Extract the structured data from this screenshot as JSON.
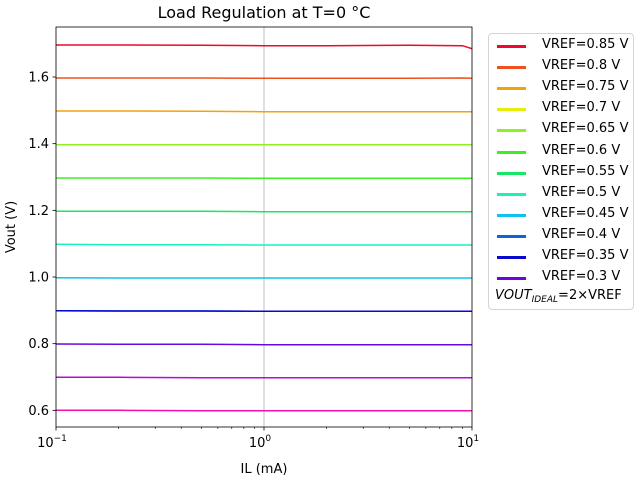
{
  "chart_data": {
    "type": "line",
    "title": "Load Regulation at T=0 °C",
    "xlabel": "IL (mA)",
    "ylabel": "Vout (V)",
    "xscale": "log",
    "xlim": [
      0.1,
      10
    ],
    "ylim": [
      0.55,
      1.75
    ],
    "x_ticks": [
      {
        "value": 0.1,
        "base": "10",
        "exp": "−1"
      },
      {
        "value": 1,
        "base": "10",
        "exp": "0"
      },
      {
        "value": 10,
        "base": "10",
        "exp": "1"
      }
    ],
    "y_ticks": [
      "0.6",
      "0.8",
      "1.0",
      "1.2",
      "1.4",
      "1.6"
    ],
    "grid": "vertical at 10^0",
    "legend_position": "outside right",
    "x": [
      0.1,
      0.2,
      0.5,
      1,
      2,
      5,
      9,
      10
    ],
    "series": [
      {
        "name": "VREF=0.85 V",
        "color": "#ee0a2a",
        "values": [
          1.696,
          1.696,
          1.695,
          1.694,
          1.694,
          1.695,
          1.694,
          1.685
        ]
      },
      {
        "name": "VREF=0.8 V",
        "color": "#f0501e",
        "values": [
          1.597,
          1.597,
          1.597,
          1.596,
          1.596,
          1.596,
          1.597,
          1.596
        ]
      },
      {
        "name": "VREF=0.75 V",
        "color": "#f5a20a",
        "values": [
          1.498,
          1.498,
          1.497,
          1.496,
          1.496,
          1.496,
          1.496,
          1.496
        ]
      },
      {
        "name": "VREF=0.7 V",
        "color": "#e8ec0a",
        "values": [
          1.397,
          1.397,
          1.397,
          1.397,
          1.397,
          1.397,
          1.397,
          1.397
        ]
      },
      {
        "name": "VREF=0.65 V",
        "color": "#90f020",
        "values": [
          1.397,
          1.397,
          1.397,
          1.397,
          1.397,
          1.397,
          1.397,
          1.397
        ]
      },
      {
        "name": "VREF=0.6 V",
        "color": "#3cf020",
        "values": [
          1.297,
          1.297,
          1.297,
          1.296,
          1.296,
          1.296,
          1.296,
          1.296
        ]
      },
      {
        "name": "VREF=0.55 V",
        "color": "#18e860",
        "values": [
          1.197,
          1.197,
          1.197,
          1.196,
          1.196,
          1.196,
          1.196,
          1.196
        ]
      },
      {
        "name": "VREF=0.5 V",
        "color": "#18f0c0",
        "values": [
          1.098,
          1.097,
          1.097,
          1.096,
          1.096,
          1.096,
          1.096,
          1.096
        ]
      },
      {
        "name": "VREF=0.45 V",
        "color": "#10c0f0",
        "values": [
          0.998,
          0.997,
          0.997,
          0.997,
          0.997,
          0.997,
          0.997,
          0.997
        ]
      },
      {
        "name": "VREF=0.4 V",
        "color": "#1060e0",
        "values": [
          0.899,
          0.898,
          0.898,
          0.897,
          0.897,
          0.897,
          0.897,
          0.897
        ]
      },
      {
        "name": "VREF=0.35 V",
        "color": "#0808d0",
        "values": [
          0.899,
          0.898,
          0.898,
          0.897,
          0.897,
          0.897,
          0.897,
          0.897
        ]
      },
      {
        "name": "VREF=0.3 V",
        "color": "#6808e0",
        "values": [
          0.799,
          0.798,
          0.798,
          0.797,
          0.797,
          0.797,
          0.797,
          0.797
        ]
      }
    ],
    "extra_series": [
      {
        "color": "#b808e0",
        "values": [
          0.699,
          0.699,
          0.698,
          0.698,
          0.698,
          0.698,
          0.698,
          0.698
        ]
      },
      {
        "color": "#f010b0",
        "values": [
          0.6,
          0.6,
          0.599,
          0.599,
          0.599,
          0.599,
          0.599,
          0.599
        ]
      }
    ],
    "legend_note": {
      "prefix": "VOUT",
      "sub": "IDEAL",
      "suffix": "=2×VREF"
    }
  }
}
